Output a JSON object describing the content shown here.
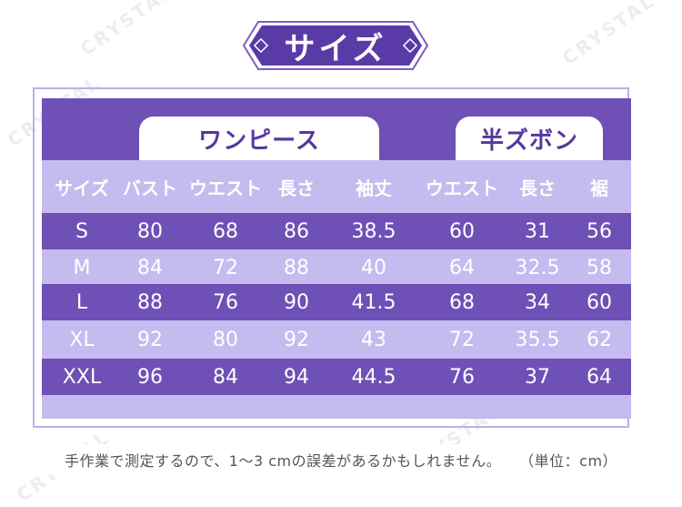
{
  "title": "サイズ",
  "groups": {
    "onepiece": "ワンピース",
    "shorts": "半ズボン"
  },
  "headers": [
    "サイズ",
    "バスト",
    "ウエスト",
    "長さ",
    "袖丈",
    "ウエスト",
    "長さ",
    "裾"
  ],
  "rows": [
    [
      "S",
      "80",
      "68",
      "86",
      "38.5",
      "60",
      "31",
      "56"
    ],
    [
      "M",
      "84",
      "72",
      "88",
      "40",
      "64",
      "32.5",
      "58"
    ],
    [
      "L",
      "88",
      "76",
      "90",
      "41.5",
      "68",
      "34",
      "60"
    ],
    [
      "XL",
      "92",
      "80",
      "92",
      "43",
      "72",
      "35.5",
      "62"
    ],
    [
      "XXL",
      "96",
      "84",
      "94",
      "44.5",
      "76",
      "37",
      "64"
    ]
  ],
  "note": {
    "main": "手作業で測定するので、1〜3 cmの誤差があるかもしれません。",
    "unit": "（単位：cm）"
  },
  "watermark": "CRYSTAL",
  "colors": {
    "dark_purple": "#6e50b6",
    "light_purple": "#c5bbee",
    "title_purple": "#5a3aa6",
    "label_text": "#56389e"
  }
}
